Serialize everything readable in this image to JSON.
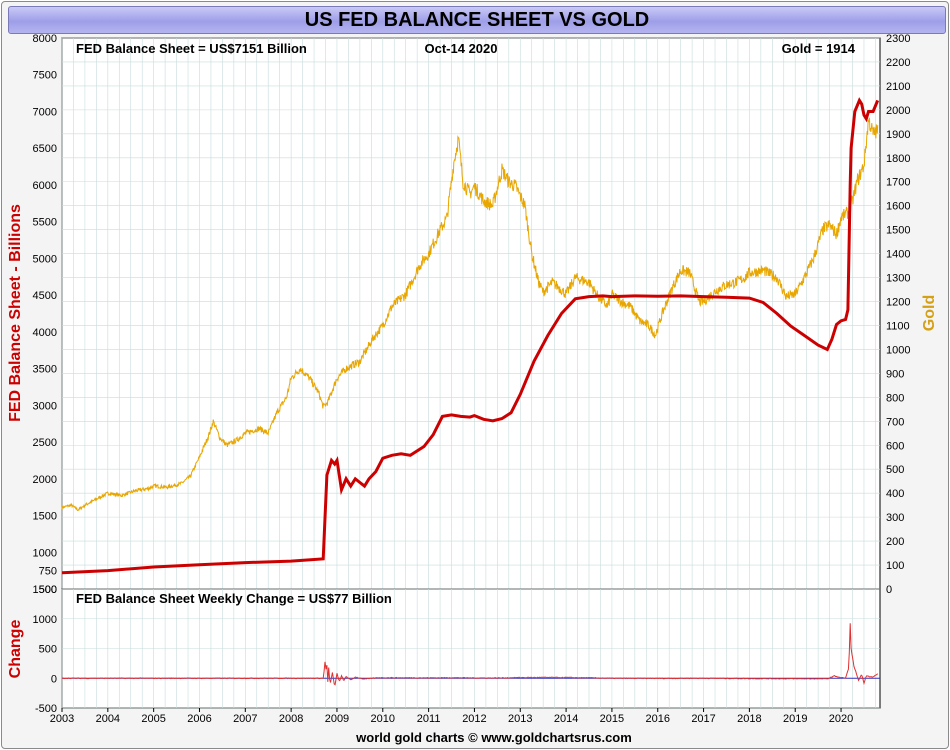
{
  "colors": {
    "fed": "#cc0000",
    "gold": "#e8a600",
    "change_up": "#e03030",
    "change_down": "#3030c0",
    "grid": "#c8dcdc",
    "title_bg": "#aaaaee",
    "change_label": "#cc0000",
    "gold_label": "#d4a017"
  },
  "chart_data": [
    {
      "type": "line",
      "title": "US FED BALANCE SHEET VS GOLD",
      "annotations": {
        "left": "FED Balance Sheet = US$7151 Billion",
        "center": "Oct-14  2020",
        "right": "Gold = 1914"
      },
      "ylabel": "FED Balance Sheet - Billions",
      "y2label": "Gold",
      "x_ticks": [
        "2003",
        "2004",
        "2005",
        "2006",
        "2007",
        "2008",
        "2009",
        "2010",
        "2011",
        "2012",
        "2013",
        "2014",
        "2015",
        "2016",
        "2017",
        "2018",
        "2019",
        "2020"
      ],
      "xlim": [
        2003.0,
        2020.85
      ],
      "ylim": [
        500,
        8000
      ],
      "y_ticks": [
        "500",
        "750",
        "1000",
        "1500",
        "2000",
        "2500",
        "3000",
        "3500",
        "4000",
        "4500",
        "5000",
        "5500",
        "6000",
        "6500",
        "7000",
        "7500",
        "8000"
      ],
      "y2lim": [
        0,
        2300
      ],
      "y2_ticks": [
        "0",
        "100",
        "200",
        "300",
        "400",
        "500",
        "600",
        "700",
        "800",
        "900",
        "1000",
        "1100",
        "1200",
        "1300",
        "1400",
        "1500",
        "1600",
        "1700",
        "1800",
        "1900",
        "2000",
        "2100",
        "2200",
        "2300"
      ],
      "series": [
        {
          "axis": "left",
          "color": "#cc0000",
          "x": [
            2003.0,
            2004.0,
            2005.0,
            2006.0,
            2007.0,
            2008.0,
            2008.7,
            2008.78,
            2008.88,
            2008.95,
            2009.0,
            2009.1,
            2009.2,
            2009.3,
            2009.4,
            2009.5,
            2009.6,
            2009.7,
            2009.85,
            2010.0,
            2010.2,
            2010.4,
            2010.6,
            2010.9,
            2011.1,
            2011.3,
            2011.5,
            2011.7,
            2011.9,
            2012.0,
            2012.2,
            2012.4,
            2012.6,
            2012.8,
            2013.0,
            2013.3,
            2013.6,
            2013.9,
            2014.2,
            2014.5,
            2014.8,
            2015.0,
            2015.5,
            2016.0,
            2016.5,
            2017.0,
            2017.5,
            2018.0,
            2018.3,
            2018.6,
            2018.9,
            2019.2,
            2019.5,
            2019.7,
            2019.8,
            2019.9,
            2020.0,
            2020.1,
            2020.15,
            2020.2,
            2020.22,
            2020.3,
            2020.4,
            2020.45,
            2020.5,
            2020.55,
            2020.6,
            2020.7,
            2020.8
          ],
          "values": [
            720,
            750,
            800,
            830,
            860,
            880,
            910,
            2050,
            2250,
            2200,
            2250,
            1850,
            2000,
            1900,
            2000,
            1950,
            1900,
            2000,
            2100,
            2280,
            2320,
            2340,
            2320,
            2440,
            2600,
            2850,
            2870,
            2850,
            2840,
            2860,
            2810,
            2790,
            2820,
            2900,
            3150,
            3600,
            3950,
            4250,
            4450,
            4480,
            4490,
            4480,
            4490,
            4485,
            4490,
            4480,
            4470,
            4460,
            4400,
            4250,
            4080,
            3950,
            3820,
            3760,
            3900,
            4100,
            4150,
            4170,
            4300,
            6000,
            6500,
            7000,
            7150,
            7100,
            6950,
            6900,
            7000,
            7000,
            7151
          ]
        },
        {
          "axis": "right",
          "color": "#e8a600",
          "x": [
            2003.0,
            2003.2,
            2003.35,
            2003.5,
            2003.8,
            2004.0,
            2004.3,
            2004.6,
            2004.9,
            2005.0,
            2005.3,
            2005.6,
            2005.8,
            2006.0,
            2006.2,
            2006.3,
            2006.45,
            2006.6,
            2006.8,
            2007.0,
            2007.3,
            2007.5,
            2007.7,
            2007.9,
            2008.0,
            2008.2,
            2008.4,
            2008.6,
            2008.7,
            2008.8,
            2008.9,
            2009.0,
            2009.2,
            2009.5,
            2009.8,
            2010.0,
            2010.2,
            2010.5,
            2010.8,
            2011.0,
            2011.2,
            2011.4,
            2011.55,
            2011.65,
            2011.75,
            2011.9,
            2012.0,
            2012.2,
            2012.4,
            2012.6,
            2012.75,
            2012.9,
            2013.1,
            2013.25,
            2013.4,
            2013.5,
            2013.7,
            2013.9,
            2014.0,
            2014.2,
            2014.5,
            2014.7,
            2014.9,
            2015.0,
            2015.2,
            2015.4,
            2015.6,
            2015.8,
            2015.95,
            2016.1,
            2016.3,
            2016.5,
            2016.7,
            2016.9,
            2017.0,
            2017.3,
            2017.5,
            2017.7,
            2017.9,
            2018.0,
            2018.3,
            2018.6,
            2018.8,
            2019.0,
            2019.2,
            2019.4,
            2019.6,
            2019.75,
            2019.9,
            2020.0,
            2020.2,
            2020.35,
            2020.5,
            2020.6,
            2020.7,
            2020.8
          ],
          "values": [
            340,
            350,
            330,
            350,
            380,
            400,
            390,
            410,
            420,
            430,
            425,
            440,
            470,
            550,
            640,
            700,
            630,
            600,
            620,
            650,
            670,
            650,
            740,
            800,
            880,
            920,
            880,
            820,
            760,
            780,
            830,
            880,
            920,
            950,
            1050,
            1100,
            1180,
            1230,
            1350,
            1400,
            1480,
            1550,
            1780,
            1880,
            1700,
            1650,
            1680,
            1620,
            1600,
            1750,
            1700,
            1680,
            1600,
            1400,
            1280,
            1240,
            1280,
            1250,
            1230,
            1300,
            1280,
            1220,
            1180,
            1230,
            1200,
            1180,
            1120,
            1100,
            1060,
            1150,
            1250,
            1330,
            1320,
            1200,
            1200,
            1250,
            1270,
            1280,
            1300,
            1320,
            1330,
            1300,
            1220,
            1230,
            1300,
            1380,
            1500,
            1520,
            1480,
            1550,
            1580,
            1700,
            1770,
            1960,
            1900,
            1914
          ]
        }
      ]
    },
    {
      "type": "line",
      "title": "FED Balance Sheet Weekly Change = US$77 Billion",
      "ylabel": "Change",
      "xlim": [
        2003.0,
        2020.85
      ],
      "ylim": [
        -500,
        1500
      ],
      "y_ticks": [
        "-500",
        "0",
        "500",
        "1000",
        "1500"
      ],
      "x": [
        2003.0,
        2008.7,
        2008.72,
        2008.74,
        2008.76,
        2008.78,
        2008.8,
        2008.82,
        2008.85,
        2008.9,
        2008.95,
        2009.0,
        2009.05,
        2009.1,
        2009.15,
        2009.2,
        2009.3,
        2009.4,
        2009.6,
        2009.9,
        2010.5,
        2011.0,
        2011.5,
        2012.0,
        2012.5,
        2013.0,
        2013.5,
        2014.0,
        2014.5,
        2015.0,
        2016.0,
        2017.0,
        2018.0,
        2019.0,
        2019.7,
        2019.8,
        2019.85,
        2020.0,
        2020.1,
        2020.17,
        2020.2,
        2020.22,
        2020.25,
        2020.28,
        2020.32,
        2020.38,
        2020.45,
        2020.5,
        2020.55,
        2020.6,
        2020.7,
        2020.8
      ],
      "values": [
        0,
        0,
        120,
        280,
        150,
        220,
        -60,
        180,
        -120,
        100,
        -150,
        80,
        -60,
        40,
        -50,
        30,
        -30,
        20,
        -15,
        10,
        8,
        6,
        10,
        5,
        4,
        12,
        14,
        12,
        8,
        0,
        -2,
        0,
        -5,
        -8,
        -10,
        20,
        40,
        10,
        5,
        180,
        930,
        500,
        350,
        200,
        120,
        -40,
        60,
        -80,
        40,
        30,
        20,
        77
      ]
    }
  ],
  "footer": "world gold charts © www.goldchartsrus.com"
}
